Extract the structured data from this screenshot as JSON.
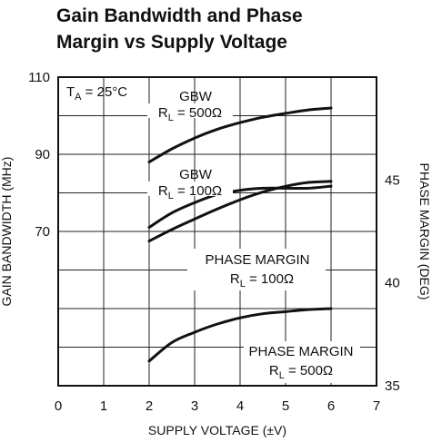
{
  "chart_data": {
    "type": "line",
    "title_line1": "Gain Bandwidth and Phase",
    "title_line2": "Margin vs Supply Voltage",
    "xlabel": "SUPPLY VOLTAGE (±V)",
    "ylabel_left": "GAIN BANDWIDTH (MHz)",
    "ylabel_right": "PHASE MARGIN (DEG)",
    "xlim": [
      0,
      7
    ],
    "ylim_left": [
      30,
      110
    ],
    "ylim_right": [
      35,
      50
    ],
    "x_ticks": [
      "0",
      "1",
      "2",
      "3",
      "4",
      "5",
      "6",
      "7"
    ],
    "y_left_ticks": [
      {
        "value": 70,
        "label": "70"
      },
      {
        "value": 90,
        "label": "90"
      },
      {
        "value": 110,
        "label": "110"
      }
    ],
    "y_right_ticks": [
      {
        "value": 35,
        "label": "35"
      },
      {
        "value": 40,
        "label": "40"
      },
      {
        "value": 45,
        "label": "45"
      }
    ],
    "grid": true,
    "condition": {
      "main": "T",
      "sub": "A",
      "rest": " = 25°C"
    },
    "series": [
      {
        "name": "GBW RL = 500Ω",
        "axis": "left",
        "x": [
          2,
          2.5,
          3,
          3.5,
          4,
          4.5,
          5,
          5.5,
          6
        ],
        "values": [
          88,
          91.4,
          94.2,
          96.5,
          98.2,
          99.6,
          100.6,
          101.5,
          102
        ]
      },
      {
        "name": "GBW RL = 100Ω",
        "axis": "left",
        "x": [
          2,
          2.5,
          3,
          3.5,
          4,
          4.5,
          5,
          5.5,
          6
        ],
        "values": [
          67.5,
          70.5,
          73.2,
          75.8,
          78.2,
          80.2,
          81.7,
          82.7,
          83
        ]
      },
      {
        "name": "PHASE MARGIN RL = 100Ω",
        "axis": "right",
        "x": [
          2,
          2.5,
          3,
          3.5,
          4,
          4.5,
          5,
          5.5,
          6
        ],
        "values": [
          42.7,
          43.4,
          43.9,
          44.3,
          44.5,
          44.6,
          44.6,
          44.6,
          44.7
        ]
      },
      {
        "name": "PHASE MARGIN RL = 500Ω",
        "axis": "right",
        "x": [
          2,
          2.5,
          3,
          3.5,
          4,
          4.5,
          5,
          5.5,
          6
        ],
        "values": [
          36.2,
          37.1,
          37.6,
          38,
          38.3,
          38.5,
          38.6,
          38.7,
          38.75
        ]
      }
    ],
    "annotations": [
      {
        "line1": "GBW",
        "r_main": "R",
        "r_sub": "L",
        "r_rest": " = 500Ω"
      },
      {
        "line1": "GBW",
        "r_main": "R",
        "r_sub": "L",
        "r_rest": " = 100Ω"
      },
      {
        "line1": "PHASE MARGIN",
        "r_main": "R",
        "r_sub": "L",
        "r_rest": " = 100Ω"
      },
      {
        "line1": "PHASE MARGIN",
        "r_main": "R",
        "r_sub": "L",
        "r_rest": " = 500Ω"
      }
    ]
  }
}
